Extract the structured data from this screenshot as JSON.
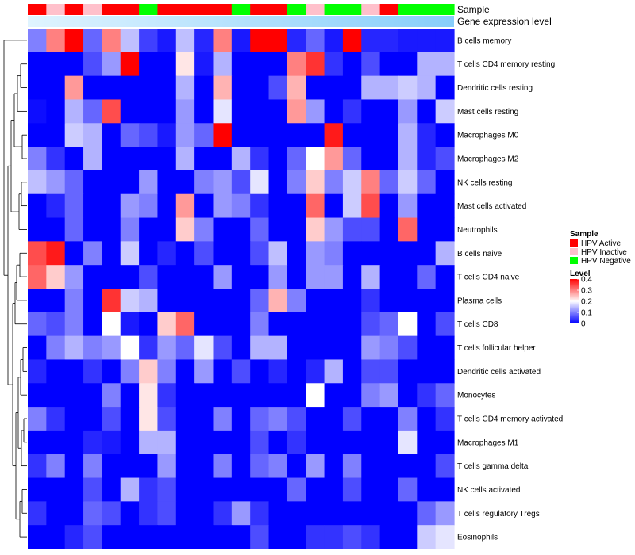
{
  "chart_data": {
    "type": "heatmap",
    "annotation_rows": [
      "Sample",
      "Gene expression level"
    ],
    "samples": [
      "HPV Active",
      "HPV Inactive",
      "HPV Active",
      "HPV Inactive",
      "HPV Active",
      "HPV Active",
      "HPV Negative",
      "HPV Active",
      "HPV Active",
      "HPV Active",
      "HPV Active",
      "HPV Negative",
      "HPV Active",
      "HPV Active",
      "HPV Negative",
      "HPV Inactive",
      "HPV Negative",
      "HPV Negative",
      "HPV Inactive",
      "HPV Active",
      "HPV Negative",
      "HPV Negative",
      "HPV Negative"
    ],
    "rows": [
      "B cells memory",
      "T cells CD4 memory resting",
      "Dendritic cells resting",
      "Mast cells resting",
      "Macrophages M0",
      "Macrophages M2",
      "NK cells resting",
      "Mast cells activated",
      "Neutrophils",
      "B cells naive",
      "T cells CD4 naive",
      "Plasma cells",
      "T cells CD8",
      "T cells follicular helper",
      "Dendritic cells activated",
      "Monocytes",
      "T cells CD4 memory activated",
      "Macrophages M1",
      "T cells gamma delta",
      "NK cells activated",
      "T cells regulatory  Tregs",
      "Eosinophils"
    ],
    "values": [
      [
        0.1,
        0.3,
        0.4,
        0.08,
        0.3,
        0.15,
        0.05,
        0.02,
        0.15,
        0.03,
        0.3,
        0.02,
        0.4,
        0.4,
        0.03,
        0.08,
        0.02,
        0.4,
        0.03,
        0.03,
        0.02,
        0.02,
        0.02
      ],
      [
        0.0,
        0.0,
        0.0,
        0.06,
        0.12,
        0.4,
        0.0,
        0.0,
        0.22,
        0.02,
        0.14,
        0.0,
        0.0,
        0.0,
        0.3,
        0.36,
        0.04,
        0.0,
        0.06,
        0.0,
        0.0,
        0.14,
        0.14
      ],
      [
        0.0,
        0.0,
        0.28,
        0.0,
        0.0,
        0.0,
        0.0,
        0.0,
        0.14,
        0.0,
        0.26,
        0.0,
        0.0,
        0.06,
        0.26,
        0.0,
        0.0,
        0.0,
        0.14,
        0.14,
        0.16,
        0.14,
        0.0
      ],
      [
        0.01,
        0.0,
        0.14,
        0.08,
        0.34,
        0.0,
        0.0,
        0.0,
        0.12,
        0.0,
        0.18,
        0.0,
        0.0,
        0.0,
        0.28,
        0.12,
        0.0,
        0.04,
        0.0,
        0.0,
        0.12,
        0.0,
        0.16
      ],
      [
        0.0,
        0.0,
        0.16,
        0.14,
        0.0,
        0.08,
        0.06,
        0.02,
        0.12,
        0.08,
        0.4,
        0.0,
        0.0,
        0.0,
        0.0,
        0.0,
        0.38,
        0.0,
        0.0,
        0.0,
        0.14,
        0.03,
        0.0
      ],
      [
        0.1,
        0.04,
        0.0,
        0.14,
        0.0,
        0.0,
        0.0,
        0.0,
        0.14,
        0.0,
        0.0,
        0.14,
        0.04,
        0.0,
        0.08,
        0.2,
        0.28,
        0.08,
        0.0,
        0.0,
        0.14,
        0.03,
        0.06
      ],
      [
        0.15,
        0.12,
        0.08,
        0.0,
        0.0,
        0.0,
        0.12,
        0.0,
        0.0,
        0.1,
        0.12,
        0.06,
        0.18,
        0.0,
        0.1,
        0.24,
        0.1,
        0.16,
        0.3,
        0.08,
        0.16,
        0.08,
        0.0
      ],
      [
        0.0,
        0.03,
        0.08,
        0.0,
        0.0,
        0.12,
        0.1,
        0.0,
        0.28,
        0.0,
        0.12,
        0.1,
        0.04,
        0.0,
        0.0,
        0.32,
        0.0,
        0.16,
        0.34,
        0.0,
        0.12,
        0.0,
        0.0
      ],
      [
        0.0,
        0.0,
        0.08,
        0.0,
        0.0,
        0.1,
        0.0,
        0.0,
        0.24,
        0.1,
        0.0,
        0.0,
        0.08,
        0.0,
        0.0,
        0.24,
        0.12,
        0.06,
        0.06,
        0.0,
        0.32,
        0.0,
        0.0
      ],
      [
        0.34,
        0.38,
        0.0,
        0.1,
        0.0,
        0.16,
        0.0,
        0.03,
        0.0,
        0.06,
        0.0,
        0.0,
        0.06,
        0.15,
        0.0,
        0.12,
        0.1,
        0.0,
        0.0,
        0.0,
        0.0,
        0.0,
        0.14
      ],
      [
        0.32,
        0.24,
        0.12,
        0.0,
        0.0,
        0.0,
        0.06,
        0.0,
        0.0,
        0.0,
        0.12,
        0.0,
        0.0,
        0.12,
        0.0,
        0.12,
        0.12,
        0.0,
        0.14,
        0.0,
        0.0,
        0.08,
        0.0
      ],
      [
        0.0,
        0.0,
        0.1,
        0.0,
        0.36,
        0.16,
        0.14,
        0.0,
        0.0,
        0.0,
        0.0,
        0.0,
        0.08,
        0.26,
        0.1,
        0.0,
        0.0,
        0.0,
        0.04,
        0.0,
        0.0,
        0.0,
        0.0
      ],
      [
        0.08,
        0.06,
        0.1,
        0.0,
        0.2,
        0.02,
        0.0,
        0.24,
        0.32,
        0.0,
        0.0,
        0.0,
        0.1,
        0.0,
        0.0,
        0.0,
        0.0,
        0.0,
        0.06,
        0.08,
        0.2,
        0.0,
        0.06
      ],
      [
        0.0,
        0.1,
        0.14,
        0.1,
        0.12,
        0.2,
        0.04,
        0.12,
        0.08,
        0.18,
        0.06,
        0.0,
        0.14,
        0.14,
        0.0,
        0.0,
        0.0,
        0.0,
        0.12,
        0.1,
        0.06,
        0.0,
        0.0
      ],
      [
        0.03,
        0.0,
        0.0,
        0.04,
        0.0,
        0.1,
        0.24,
        0.1,
        0.0,
        0.12,
        0.0,
        0.06,
        0.0,
        0.03,
        0.0,
        0.03,
        0.14,
        0.0,
        0.06,
        0.06,
        0.0,
        0.0,
        0.0
      ],
      [
        0.0,
        0.0,
        0.0,
        0.0,
        0.1,
        0.0,
        0.22,
        0.04,
        0.0,
        0.0,
        0.0,
        0.0,
        0.0,
        0.0,
        0.0,
        0.2,
        0.0,
        0.0,
        0.1,
        0.12,
        0.0,
        0.04,
        0.08
      ],
      [
        0.1,
        0.04,
        0.0,
        0.0,
        0.06,
        0.0,
        0.22,
        0.06,
        0.0,
        0.0,
        0.1,
        0.0,
        0.08,
        0.1,
        0.06,
        0.0,
        0.0,
        0.06,
        0.0,
        0.0,
        0.1,
        0.0,
        0.04
      ],
      [
        0.0,
        0.0,
        0.0,
        0.03,
        0.02,
        0.0,
        0.14,
        0.14,
        0.0,
        0.0,
        0.0,
        0.0,
        0.06,
        0.0,
        0.04,
        0.0,
        0.0,
        0.0,
        0.0,
        0.0,
        0.18,
        0.0,
        0.0
      ],
      [
        0.04,
        0.1,
        0.0,
        0.1,
        0.0,
        0.0,
        0.0,
        0.12,
        0.0,
        0.0,
        0.1,
        0.0,
        0.08,
        0.1,
        0.0,
        0.12,
        0.0,
        0.1,
        0.0,
        0.0,
        0.0,
        0.0,
        0.06
      ],
      [
        0.0,
        0.0,
        0.0,
        0.06,
        0.0,
        0.14,
        0.04,
        0.06,
        0.0,
        0.0,
        0.0,
        0.0,
        0.0,
        0.0,
        0.08,
        0.0,
        0.0,
        0.06,
        0.0,
        0.0,
        0.08,
        0.0,
        0.0
      ],
      [
        0.04,
        0.0,
        0.0,
        0.08,
        0.06,
        0.0,
        0.04,
        0.06,
        0.0,
        0.0,
        0.04,
        0.12,
        0.04,
        0.0,
        0.0,
        0.0,
        0.0,
        0.0,
        0.0,
        0.0,
        0.0,
        0.08,
        0.12
      ],
      [
        0.0,
        0.0,
        0.03,
        0.06,
        0.0,
        0.0,
        0.0,
        0.0,
        0.0,
        0.0,
        0.0,
        0.0,
        0.06,
        0.0,
        0.0,
        0.04,
        0.04,
        0.06,
        0.04,
        0.0,
        0.0,
        0.16,
        0.18
      ]
    ],
    "legend": {
      "sample": {
        "title": "Sample",
        "items": [
          {
            "label": "HPV Active",
            "color": "#ff0000"
          },
          {
            "label": "HPV Inactive",
            "color": "#ffc0cb"
          },
          {
            "label": "HPV Negative",
            "color": "#00ff00"
          }
        ]
      },
      "level": {
        "title": "Level",
        "ticks": [
          "0.4",
          "0.3",
          "0.2",
          "0.1",
          "0"
        ],
        "tick_values": [
          0.4,
          0.3,
          0.2,
          0.1,
          0
        ],
        "range": [
          0,
          0.4
        ]
      }
    },
    "colors": {
      "low": "#0000ff",
      "mid": "#ffffff",
      "high": "#ff0000",
      "expression_low": "#87cefa",
      "expression_high": "#e0f4ff"
    }
  }
}
